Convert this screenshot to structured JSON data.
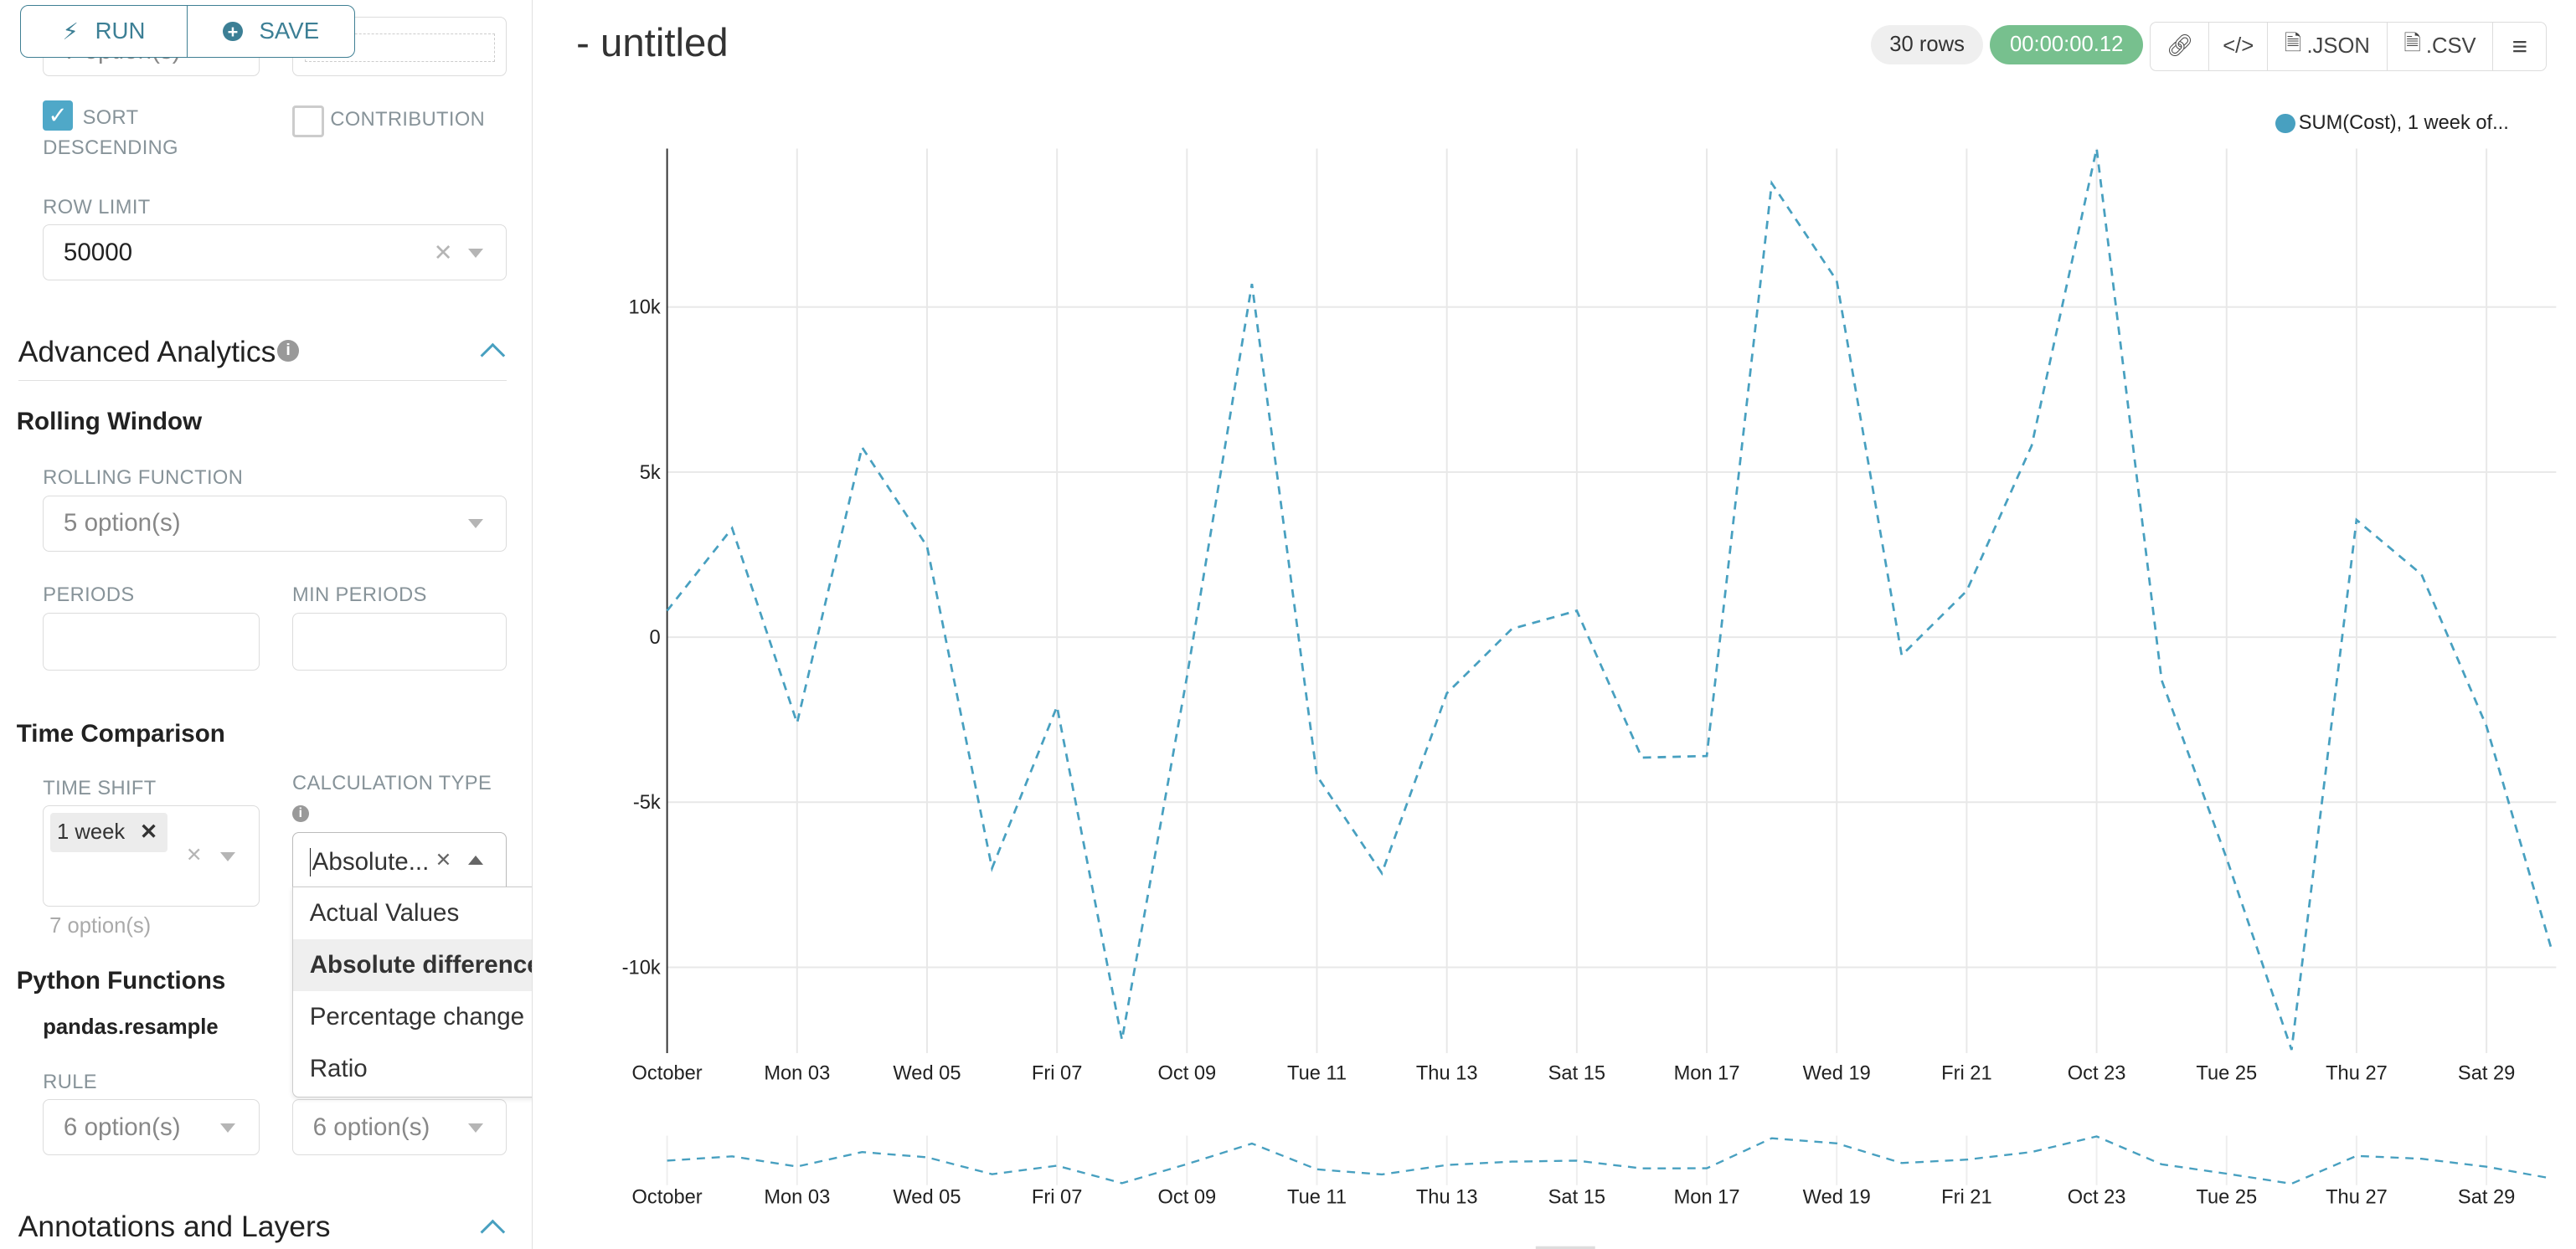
{
  "toolbar": {
    "run_label": "RUN",
    "save_label": "SAVE"
  },
  "sidebar": {
    "top_select_partial": "7 option(s)",
    "sort_descending": {
      "label": "SORT DESCENDING",
      "checked": true
    },
    "contribution": {
      "label": "CONTRIBUTION",
      "checked": false
    },
    "row_limit": {
      "label": "ROW LIMIT",
      "value": "50000"
    },
    "advanced_analytics": {
      "title": "Advanced Analytics",
      "rolling_window": {
        "title": "Rolling Window",
        "rolling_function_label": "ROLLING FUNCTION",
        "rolling_function_placeholder": "5 option(s)",
        "periods_label": "PERIODS",
        "min_periods_label": "MIN PERIODS"
      },
      "time_comparison": {
        "title": "Time Comparison",
        "time_shift_label": "TIME SHIFT",
        "time_shift_tag": "1 week",
        "time_shift_hint": "7 option(s)",
        "calculation_type_label": "CALCULATION TYPE",
        "calculation_type_value": "Absolute...",
        "options": [
          "Actual Values",
          "Absolute difference",
          "Percentage change",
          "Ratio"
        ],
        "highlighted_option": "Absolute difference"
      },
      "python_functions": {
        "title": "Python Functions",
        "subtitle": "pandas.resample",
        "rule_label": "RULE",
        "rule_placeholder": "6 option(s)",
        "method_placeholder": "6 option(s)"
      }
    },
    "annotations": {
      "title": "Annotations and Layers"
    }
  },
  "header": {
    "title": "- untitled",
    "rows_badge": "30 rows",
    "timer_badge": "00:00:00.12",
    "actions": {
      "link_icon": "link-icon",
      "embed_icon": "code-icon",
      "json_label": ".JSON",
      "csv_label": ".CSV",
      "menu_icon": "hamburger-icon"
    }
  },
  "colors": {
    "accent": "#48a0c0",
    "timer": "#77c08e",
    "button": "#3c7f95"
  },
  "chart_data": {
    "type": "line",
    "line_style": "dashed",
    "legend": [
      "SUM(Cost), 1 week of..."
    ],
    "legend_placement": "top-right",
    "grid": true,
    "x": [
      "2016-10-01",
      "2016-10-02",
      "2016-10-03",
      "2016-10-04",
      "2016-10-05",
      "2016-10-06",
      "2016-10-07",
      "2016-10-08",
      "2016-10-09",
      "2016-10-10",
      "2016-10-11",
      "2016-10-12",
      "2016-10-13",
      "2016-10-14",
      "2016-10-15",
      "2016-10-16",
      "2016-10-17",
      "2016-10-18",
      "2016-10-19",
      "2016-10-20",
      "2016-10-21",
      "2016-10-22",
      "2016-10-23",
      "2016-10-24",
      "2016-10-25",
      "2016-10-26",
      "2016-10-27",
      "2016-10-28",
      "2016-10-29",
      "2016-10-30"
    ],
    "series": [
      {
        "name": "SUM(Cost), 1 week of...",
        "values": [
          800,
          3300,
          -2600,
          5750,
          2750,
          -7000,
          -2100,
          -12200,
          -1200,
          10700,
          -4200,
          -7150,
          -1700,
          250,
          800,
          -3650,
          -3600,
          13750,
          10800,
          -550,
          1400,
          5800,
          14800,
          -1300,
          -6700,
          -12500,
          3550,
          1900,
          -2700,
          -9450
        ]
      }
    ],
    "x_tick_labels": [
      "October",
      "Mon 03",
      "Wed 05",
      "Fri 07",
      "Oct 09",
      "Tue 11",
      "Thu 13",
      "Sat 15",
      "Mon 17",
      "Wed 19",
      "Fri 21",
      "Oct 23",
      "Tue 25",
      "Thu 27",
      "Sat 29"
    ],
    "y_tick_labels": [
      "10k",
      "5k",
      "0",
      "-5k",
      "-10k"
    ],
    "y_ticks": [
      10000,
      5000,
      0,
      -5000,
      -10000
    ],
    "ylim": [
      -12500,
      14800
    ],
    "brush": true
  }
}
